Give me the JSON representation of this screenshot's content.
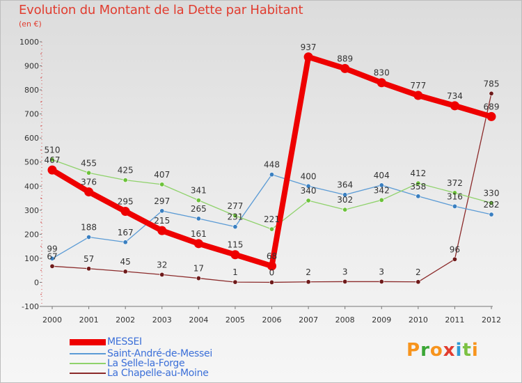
{
  "title": "Evolution du Montant de la Dette par Habitant",
  "unit": "(en €)",
  "logo": {
    "letters": [
      "P",
      "r",
      "o",
      "x",
      "i",
      "t",
      "i"
    ],
    "colors": [
      "#f7941d",
      "#3aa635",
      "#f7941d",
      "#e13c2f",
      "#2e9bd6",
      "#7bc142",
      "#f7941d"
    ]
  },
  "chart_data": {
    "type": "line",
    "x": [
      "2000",
      "2001",
      "2002",
      "2003",
      "2004",
      "2005",
      "2006",
      "2007",
      "2008",
      "2009",
      "2010",
      "2011",
      "2012"
    ],
    "ylim": [
      -100,
      1000
    ],
    "yticks": [
      "-100",
      "0",
      "100",
      "200",
      "300",
      "400",
      "500",
      "600",
      "700",
      "800",
      "900",
      "1000"
    ],
    "grid": false,
    "legend_position": "bottom-left",
    "series": [
      {
        "name": "MESSEI",
        "color": "#ee0000",
        "emphasis": "thick",
        "values": [
          467,
          376,
          295,
          215,
          161,
          115,
          68,
          937,
          889,
          830,
          777,
          734,
          689
        ],
        "labels": [
          "467",
          "376",
          "295",
          "215",
          "161",
          "115",
          "68",
          "937",
          "889",
          "830",
          "777",
          "734",
          "689"
        ]
      },
      {
        "name": "Saint-André-de-Messei",
        "color": "#5b9bd5",
        "marker": "#3a7fc0",
        "values": [
          99,
          188,
          167,
          297,
          265,
          231,
          448,
          400,
          364,
          404,
          358,
          316,
          282
        ],
        "labels": [
          "99",
          "188",
          "167",
          "297",
          "265",
          "231",
          "448",
          "400",
          "364",
          "404",
          "358",
          "316",
          "282"
        ]
      },
      {
        "name": "La Selle-la-Forge",
        "color": "#8fd26b",
        "marker": "#6cc23a",
        "values": [
          510,
          455,
          425,
          407,
          341,
          277,
          221,
          340,
          302,
          342,
          412,
          372,
          330
        ],
        "labels": [
          "510",
          "455",
          "425",
          "407",
          "341",
          "277",
          "221",
          "340",
          "302",
          "342",
          "412",
          "372",
          "330"
        ]
      },
      {
        "name": "La Chapelle-au-Moine",
        "color": "#8b2a2a",
        "marker": "#6e1a1a",
        "values": [
          67,
          57,
          45,
          32,
          17,
          1,
          0,
          2,
          3,
          3,
          2,
          96,
          785
        ],
        "labels": [
          "67",
          "57",
          "45",
          "32",
          "17",
          "1",
          "0",
          "2",
          "3",
          "3",
          "2",
          "96",
          "785"
        ]
      }
    ]
  }
}
